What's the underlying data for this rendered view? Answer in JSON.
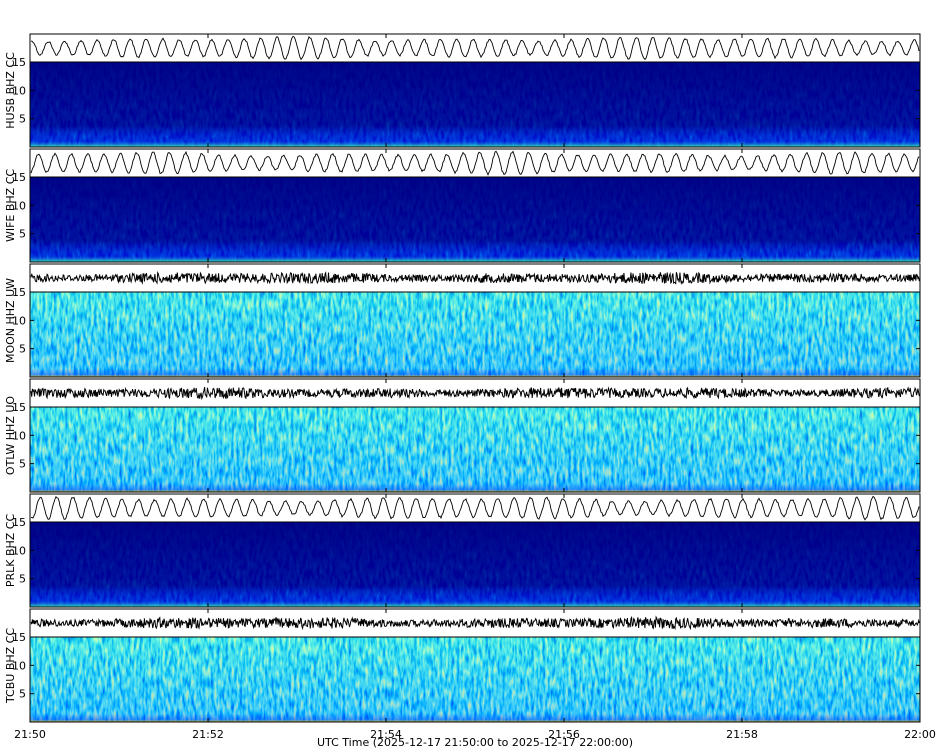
{
  "chart_data": {
    "type": "spectrogram",
    "xlabel": "UTC Time (2025-12-17 21:50:00 to 2025-12-17 22:00:00)",
    "xticks": [
      "21:50",
      "21:52",
      "21:54",
      "21:56",
      "21:58",
      "22:00"
    ],
    "panels": [
      {
        "label": "HUSB BHZ CC",
        "ylim": [
          0,
          15
        ],
        "yticks": [
          5,
          10,
          15
        ],
        "level": "low"
      },
      {
        "label": "WIFE BHZ CC",
        "ylim": [
          0,
          15
        ],
        "yticks": [
          5,
          10,
          15
        ],
        "level": "low"
      },
      {
        "label": "MOON HHZ UW",
        "ylim": [
          0,
          15
        ],
        "yticks": [
          5,
          10,
          15
        ],
        "level": "high"
      },
      {
        "label": "OTLW HHZ UO",
        "ylim": [
          0,
          15
        ],
        "yticks": [
          5,
          10,
          15
        ],
        "level": "high"
      },
      {
        "label": "PRLK BHZ CC",
        "ylim": [
          0,
          15
        ],
        "yticks": [
          5,
          10,
          15
        ],
        "level": "low"
      },
      {
        "label": "TCBU BHZ CC",
        "ylim": [
          0,
          15
        ],
        "yticks": [
          5,
          10,
          15
        ],
        "level": "high"
      }
    ]
  }
}
